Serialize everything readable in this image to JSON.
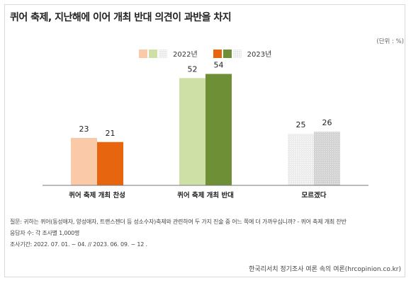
{
  "title": "퀴어 축제, 지난해에 이어 개최 반대 의견이 과반을 차지",
  "unit_note": "(단위 : %)",
  "legend": [
    {
      "label": "2022년",
      "colors": [
        "#f9c9a8",
        "#cfe0a6",
        "#e6e6e6"
      ]
    },
    {
      "label": "2023년",
      "colors": [
        "#e8650f",
        "#6e8f35",
        "#cfcfcf"
      ]
    }
  ],
  "notes": [
    "질문: 귀하는 퀴어(동성애자, 양성애자, 트랜스젠더 등 성소수자)축제와 관련하여 두 가지 진술 중 어느 쪽에 더 가까우십니까? - 퀴어 축제 개최 찬반",
    "응답자 수: 각 조사별 1,000명",
    "조사기간: 2022. 07. 01. ~ 04. // 2023. 06. 09. ~ 12 ."
  ],
  "source": "한국리서치 정기조사 여론 속의 여론(hrcopinion.co.kr)",
  "chart_data": {
    "type": "bar",
    "categories": [
      "퀴어 축제 개최 찬성",
      "퀴어 축제 개최 반대",
      "모르겠다"
    ],
    "series": [
      {
        "name": "2022년",
        "values": [
          23,
          52,
          25
        ],
        "colors": [
          "#f9c9a8",
          "#cfe0a6",
          "#e6e6e6"
        ]
      },
      {
        "name": "2023년",
        "values": [
          21,
          54,
          26
        ],
        "colors": [
          "#e8650f",
          "#6e8f35",
          "#cfcfcf"
        ]
      }
    ],
    "ylim": [
      0,
      60
    ],
    "grid": false,
    "legend_position": "top-center"
  }
}
